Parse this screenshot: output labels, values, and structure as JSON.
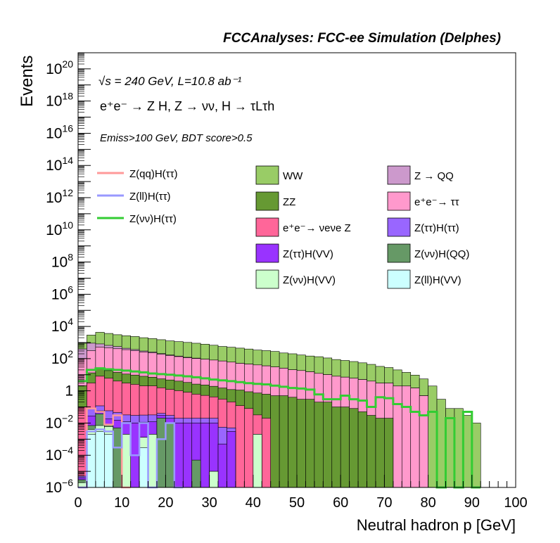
{
  "chart_data": {
    "type": "histogram",
    "title": "FCCAnalyses: FCC-ee Simulation (Delphes)",
    "xlabel": "Neutral hadron p [GeV]",
    "ylabel": "Events",
    "yscale": "log",
    "xlim": [
      0,
      100
    ],
    "ylim": [
      1e-06,
      1e+21
    ],
    "x_ticks": [
      "0",
      "10",
      "20",
      "30",
      "40",
      "50",
      "60",
      "70",
      "80",
      "90",
      "100"
    ],
    "y_ticks": [
      {
        "base": "10",
        "exp": "−6",
        "v": 1e-06
      },
      {
        "base": "10",
        "exp": "−4",
        "v": 0.0001
      },
      {
        "base": "10",
        "exp": "−2",
        "v": 0.01
      },
      {
        "base": "1",
        "exp": "",
        "v": 1
      },
      {
        "base": "10",
        "exp": "2",
        "v": 100.0
      },
      {
        "base": "10",
        "exp": "4",
        "v": 10000.0
      },
      {
        "base": "10",
        "exp": "6",
        "v": 1000000.0
      },
      {
        "base": "10",
        "exp": "8",
        "v": 100000000.0
      },
      {
        "base": "10",
        "exp": "10",
        "v": 10000000000.0
      },
      {
        "base": "10",
        "exp": "12",
        "v": 1000000000000.0
      },
      {
        "base": "10",
        "exp": "14",
        "v": 100000000000000.0
      },
      {
        "base": "10",
        "exp": "16",
        "v": 1e+16
      },
      {
        "base": "10",
        "exp": "18",
        "v": 1e+18
      },
      {
        "base": "10",
        "exp": "20",
        "v": 1e+20
      }
    ],
    "annotations": {
      "line1": "√s = 240 GeV, L=10.8 ab⁻¹",
      "line2": "e⁺e⁻ → Z H, Z → νν, H → τLτh",
      "line3": "Emiss>100 GeV, BDT score>0.5"
    },
    "bin_edges_step": 2,
    "stacked_series": [
      {
        "name": "Z(ll)H(VV)",
        "color": "#ccffff",
        "bins": {
          "0": 1e-06,
          "1": 0.002,
          "2": 0.003,
          "3": 0.002,
          "7": 0.0003
        }
      },
      {
        "name": "Z(νν)H(VV)",
        "color": "#ccffcc",
        "bins": {
          "0": 1e-06,
          "1": 0.002,
          "2": 0.004,
          "3": 0.004,
          "5": 0.002,
          "7": 0.001,
          "8": 0.002,
          "15": 1e-05,
          "20": 0.002
        }
      },
      {
        "name": "Z(νν)H(QQ)",
        "color": "#669966",
        "bins": {
          "0": 1e-06,
          "1": 0.003,
          "2": 0.03,
          "3": 0.002,
          "4": 0.005,
          "9": 0.02,
          "10": 0.01,
          "13": 5e-05
        }
      },
      {
        "name": "Z(ττ)H(VV)",
        "color": "#9933ff",
        "bins": {
          "0": 1e-06,
          "1": 0.02,
          "2": 0.02,
          "3": 0.01,
          "4": 0.01,
          "5": 0.01,
          "6": 0.01,
          "7": 0.01,
          "8": 0.01,
          "9": 0.01,
          "10": 0.01,
          "11": 0.01,
          "12": 0.01,
          "13": 0.01,
          "14": 0.01,
          "15": 0.01,
          "16": 0.0005,
          "17": 0.003
        }
      },
      {
        "name": "Z(ττ)H(ττ)",
        "color": "#9966ff",
        "bins": {
          "0": 1e-06,
          "1": 0.05,
          "2": 0.06,
          "3": 0.04,
          "4": 0.03,
          "5": 0.02,
          "6": 0.02,
          "7": 0.02,
          "8": 0.02,
          "9": 0.01,
          "10": 0.01,
          "11": 0.01,
          "12": 0.01,
          "13": 0.01,
          "14": 0.01,
          "15": 0.01,
          "16": 0.005,
          "17": 0.002
        }
      },
      {
        "name": "e⁺e⁻→ νeνe Z",
        "color": "#ff6699",
        "bins": {
          "0": 0.1,
          "1": 3,
          "2": 8,
          "3": 6,
          "4": 4,
          "5": 3,
          "6": 2.5,
          "7": 2,
          "8": 2,
          "9": 1.5,
          "10": 1.2,
          "11": 1,
          "12": 0.8,
          "13": 0.6,
          "14": 0.5,
          "15": 0.4,
          "16": 0.3,
          "17": 0.2,
          "18": 0.12,
          "19": 0.08,
          "20": 0.03,
          "21": 0.02
        }
      },
      {
        "name": "ZZ",
        "color": "#669933",
        "bins": {
          "0": 2,
          "1": 10,
          "2": 15,
          "3": 12,
          "4": 10,
          "5": 8,
          "6": 7,
          "7": 6,
          "8": 5,
          "9": 4,
          "10": 3.5,
          "11": 3,
          "12": 2.5,
          "13": 2,
          "14": 1.8,
          "15": 1.5,
          "16": 1.2,
          "17": 1,
          "18": 1,
          "19": 0.8,
          "20": 0.7,
          "21": 0.6,
          "22": 0.5,
          "23": 0.5,
          "24": 0.4,
          "25": 0.3,
          "26": 0.3,
          "27": 0.2,
          "28": 0.2,
          "29": 0.1,
          "30": 0.1,
          "31": 0.08,
          "32": 0.05,
          "33": 0.03,
          "34": 0.02,
          "35": 0.02
        }
      },
      {
        "name": "e⁺e⁻→ ττ",
        "color": "#ff99cc",
        "bins": {
          "0": 100,
          "1": 300,
          "2": 500,
          "3": 450,
          "4": 400,
          "5": 350,
          "6": 300,
          "7": 250,
          "8": 220,
          "9": 180,
          "10": 150,
          "11": 130,
          "12": 110,
          "13": 100,
          "14": 90,
          "15": 80,
          "16": 70,
          "17": 60,
          "18": 50,
          "19": 45,
          "20": 40,
          "21": 35,
          "22": 30,
          "23": 25,
          "24": 20,
          "25": 18,
          "26": 15,
          "27": 12,
          "28": 10,
          "29": 8,
          "30": 7,
          "31": 6,
          "32": 5,
          "33": 4,
          "34": 3,
          "35": 3,
          "36": 2,
          "37": 2,
          "38": 1.5,
          "39": 0.5
        }
      },
      {
        "name": "Z → QQ",
        "color": "#cc99cc",
        "bins": {
          "0": 300,
          "1": 600,
          "2": 300,
          "3": 200,
          "4": 150,
          "5": 80,
          "6": 60,
          "7": 40,
          "8": 30,
          "9": 20,
          "10": 15,
          "11": 10,
          "12": 8,
          "13": 5
        }
      },
      {
        "name": "WW",
        "color": "#99cc66",
        "bins": {
          "0": 500,
          "1": 2000,
          "2": 3500,
          "3": 3000,
          "4": 2500,
          "5": 2200,
          "6": 2000,
          "7": 1700,
          "8": 1500,
          "9": 1300,
          "10": 1100,
          "11": 1000,
          "12": 900,
          "13": 800,
          "14": 700,
          "15": 600,
          "16": 500,
          "17": 450,
          "18": 400,
          "19": 350,
          "20": 300,
          "21": 280,
          "22": 250,
          "23": 200,
          "24": 180,
          "25": 150,
          "26": 130,
          "27": 120,
          "28": 100,
          "29": 80,
          "30": 70,
          "31": 60,
          "32": 50,
          "33": 40,
          "34": 30,
          "35": 25,
          "36": 18,
          "37": 12,
          "38": 8,
          "39": 5,
          "40": 2,
          "41": 0.3,
          "42": 0.08,
          "43": 0.08,
          "44": 0.03,
          "45": 0.01
        }
      }
    ],
    "overlay_series": [
      {
        "name": "Z(qq)H(ττ)",
        "color": "#ff9999",
        "width": 2.5,
        "bins": {
          "0": 1e-06,
          "1": 0.08,
          "2": 0.05,
          "3": 0.008,
          "4": 0.03,
          "5": 1e-06
        }
      },
      {
        "name": "Z(ll)H(ττ)",
        "color": "#9999ff",
        "width": 2.5,
        "bins": {
          "0": 1e-06,
          "1": 0.003,
          "2": 0.004,
          "3": 0.003,
          "4": 0.0003,
          "5": 0.01,
          "6": 0.0001,
          "7": 0.01,
          "8": 1e-06,
          "9": 0.001,
          "10": 0.01,
          "11": 1e-06
        }
      },
      {
        "name": "Z(νν)H(ττ)",
        "color": "#33cc33",
        "width": 3,
        "bins": {
          "0": 4,
          "1": 20,
          "2": 25,
          "3": 22,
          "4": 20,
          "5": 18,
          "6": 16,
          "7": 14,
          "8": 12,
          "9": 11,
          "10": 10,
          "11": 9,
          "12": 8,
          "13": 7,
          "14": 6,
          "15": 5,
          "16": 4.5,
          "17": 4,
          "18": 3.5,
          "19": 3,
          "20": 2.7,
          "21": 2.5,
          "22": 2.1,
          "23": 1.8,
          "24": 1.5,
          "25": 1.4,
          "26": 1.2,
          "27": 0.6,
          "28": 0.3,
          "29": 0.3,
          "30": 0.5,
          "31": 0.3,
          "32": 0.25,
          "33": 0.1,
          "34": 0.4,
          "35": 0.35,
          "36": 0.15,
          "37": 0.1,
          "38": 0.05,
          "39": 0.03,
          "40": 0.05,
          "41": 1e-06,
          "42": 0.02,
          "43": 1e-06,
          "44": 0.05,
          "45": 1e-06
        }
      }
    ],
    "legend": {
      "lines": [
        "Z(qq)H(ττ)",
        "Z(ll)H(ττ)",
        "Z(νν)H(ττ)"
      ],
      "boxes": [
        "WW",
        "Z → QQ",
        "ZZ",
        "e⁺e⁻→ ττ",
        "e⁺e⁻→ νeνe Z",
        "Z(ττ)H(ττ)",
        "Z(ττ)H(VV)",
        "Z(νν)H(QQ)",
        "Z(νν)H(VV)",
        "Z(ll)H(VV)"
      ]
    }
  }
}
